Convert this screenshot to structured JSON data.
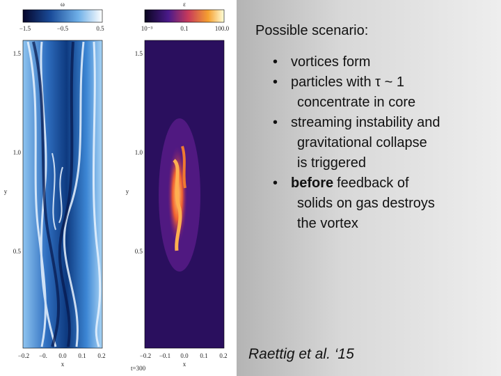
{
  "figure": {
    "left_panel": {
      "colorbar_label": "ω",
      "colorbar_ticks": [
        "−1.5",
        "−0.5",
        "0.5"
      ],
      "yticks": [
        "1.5",
        "1.0",
        "0.5"
      ],
      "ylabel": "y",
      "xticks": [
        "−0.2",
        "−0.",
        "0.0",
        "0.1",
        "0.2"
      ],
      "xlabel": "x"
    },
    "right_panel": {
      "colorbar_label": "ε",
      "colorbar_ticks": [
        "10⁻³",
        "0.1",
        "100.0"
      ],
      "yticks": [
        "1.5",
        "1.0",
        "0.5"
      ],
      "ylabel": "y",
      "xticks": [
        "−0.2",
        "−0.1",
        "0.0",
        "0.1",
        "0.2"
      ],
      "xlabel": "x",
      "time_label": "t=300"
    }
  },
  "slide": {
    "heading": "Possible scenario:",
    "bullets": [
      {
        "lines": [
          "vortices form"
        ]
      },
      {
        "lines": [
          "particles with τ ~ 1",
          "concentrate in core"
        ]
      },
      {
        "lines": [
          "streaming instability and",
          "gravitational collapse",
          "is triggered"
        ]
      },
      {
        "emphasis": "before",
        "lines": [
          "feedback of",
          "solids on gas destroys",
          "the vortex"
        ]
      }
    ],
    "citation": "Raettig et al. ‘15"
  }
}
